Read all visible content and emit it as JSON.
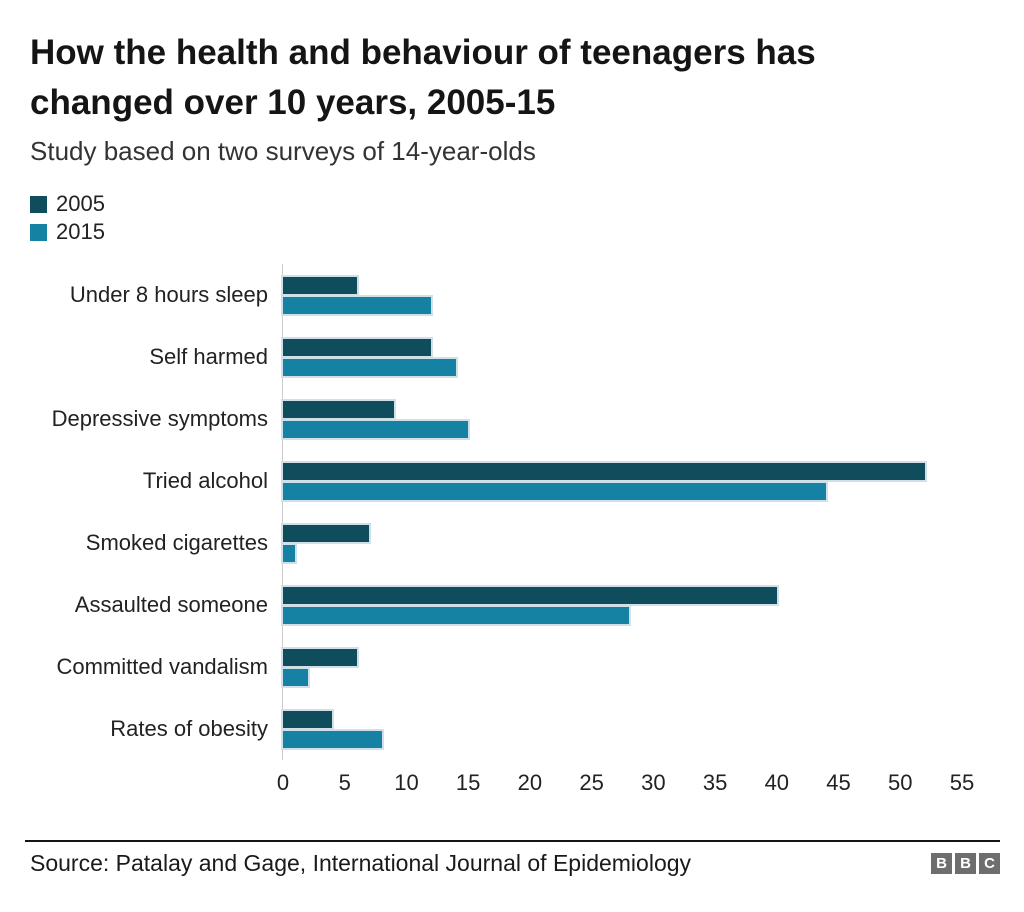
{
  "chart_data": {
    "type": "bar",
    "orientation": "horizontal",
    "title": "How the health and behaviour of teenagers has changed over 10 years, 2005-15",
    "subtitle": "Study based on two surveys of 14-year-olds",
    "categories": [
      "Under 8 hours sleep",
      "Self harmed",
      "Depressive symptoms",
      "Tried alcohol",
      "Smoked cigarettes",
      "Assaulted someone",
      "Committed vandalism",
      "Rates of obesity"
    ],
    "series": [
      {
        "name": "2005",
        "color": "#0f4c5c",
        "values": [
          6,
          12,
          9,
          52,
          7,
          40,
          6,
          4
        ]
      },
      {
        "name": "2015",
        "color": "#1682a3",
        "values": [
          12,
          14,
          15,
          44,
          1,
          28,
          2,
          8
        ]
      }
    ],
    "xlabel": "",
    "ylabel": "",
    "xlim": [
      0,
      55
    ],
    "x_ticks": [
      0,
      5,
      10,
      15,
      20,
      25,
      30,
      35,
      40,
      45,
      50,
      55
    ],
    "grid": false,
    "legend_position": "top-left"
  },
  "footer": {
    "source": "Source: Patalay and Gage, International Journal of Epidemiology",
    "logo_letters": [
      "B",
      "B",
      "C"
    ]
  },
  "colors": {
    "series_2005": "#0f4c5c",
    "series_2015": "#1682a3",
    "bar_outline": "#cfe0e8",
    "axis_line": "#cccccc",
    "footer_rule": "#141414",
    "bbc_logo_grey": "#6e6e6e",
    "background": "#ffffff"
  }
}
